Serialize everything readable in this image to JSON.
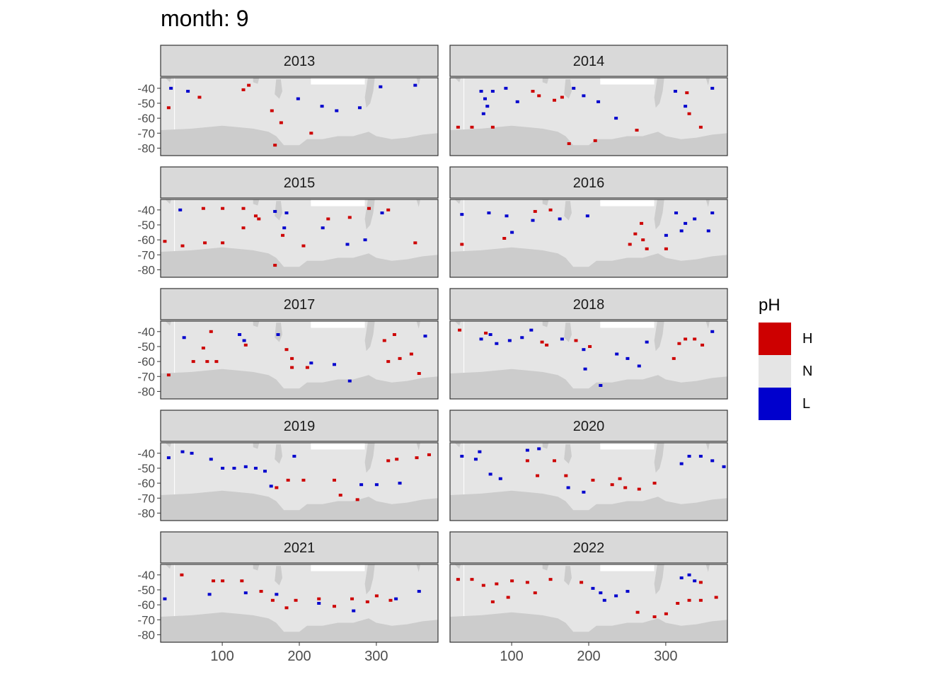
{
  "title": "month: 9",
  "legend": {
    "title": "pH",
    "items": [
      {
        "label": "H",
        "color": "#CD0000"
      },
      {
        "label": "N",
        "color": "#E5E5E5"
      },
      {
        "label": "L",
        "color": "#0000CD"
      }
    ]
  },
  "colors": {
    "land": "#CCCCCC",
    "ocean": "#E5E5E5",
    "strip": "#D9D9D9",
    "high": "#CD0000",
    "low": "#0000CD"
  },
  "chart_data": {
    "type": "heatmap",
    "title": "month: 9",
    "facet_variable": "year",
    "xlim": [
      20,
      380
    ],
    "ylim": [
      -85,
      -33
    ],
    "x_ticks": [
      100,
      200,
      300
    ],
    "y_ticks": [
      -40,
      -50,
      -60,
      -70,
      -80
    ],
    "legend_title": "pH",
    "legend_position": "right",
    "categories": [
      "H",
      "N",
      "L"
    ],
    "panels": [
      {
        "year": "2013",
        "high": [
          [
            134,
            -38
          ],
          [
            127,
            -41
          ],
          [
            164,
            -55
          ],
          [
            176,
            -63
          ],
          [
            215,
            -70
          ],
          [
            168,
            -78
          ],
          [
            70,
            -46
          ],
          [
            30,
            -53
          ]
        ],
        "low": [
          [
            33,
            -40
          ],
          [
            55,
            -42
          ],
          [
            229,
            -52
          ],
          [
            278,
            -53
          ],
          [
            305,
            -39
          ],
          [
            350,
            -38
          ],
          [
            198,
            -47
          ],
          [
            248,
            -55
          ]
        ]
      },
      {
        "year": "2014",
        "high": [
          [
            30,
            -66
          ],
          [
            48,
            -66
          ],
          [
            75,
            -66
          ],
          [
            127,
            -42
          ],
          [
            135,
            -45
          ],
          [
            155,
            -48
          ],
          [
            165,
            -46
          ],
          [
            174,
            -77
          ],
          [
            208,
            -75
          ],
          [
            262,
            -68
          ],
          [
            330,
            -57
          ],
          [
            345,
            -66
          ],
          [
            327,
            -43
          ]
        ],
        "low": [
          [
            60,
            -42
          ],
          [
            75,
            -42
          ],
          [
            92,
            -40
          ],
          [
            63,
            -57
          ],
          [
            68,
            -52
          ],
          [
            65,
            -47
          ],
          [
            107,
            -49
          ],
          [
            180,
            -40
          ],
          [
            193,
            -45
          ],
          [
            212,
            -49
          ],
          [
            235,
            -60
          ],
          [
            312,
            -42
          ],
          [
            325,
            -52
          ],
          [
            360,
            -40
          ]
        ]
      },
      {
        "year": "2015",
        "high": [
          [
            75,
            -39
          ],
          [
            100,
            -39
          ],
          [
            127,
            -39
          ],
          [
            143,
            -44
          ],
          [
            48,
            -64
          ],
          [
            77,
            -62
          ],
          [
            100,
            -62
          ],
          [
            127,
            -52
          ],
          [
            147,
            -46
          ],
          [
            178,
            -57
          ],
          [
            205,
            -64
          ],
          [
            237,
            -46
          ],
          [
            265,
            -45
          ],
          [
            290,
            -39
          ],
          [
            315,
            -40
          ],
          [
            350,
            -62
          ],
          [
            25,
            -61
          ],
          [
            168,
            -77
          ]
        ],
        "low": [
          [
            45,
            -40
          ],
          [
            168,
            -41
          ],
          [
            183,
            -42
          ],
          [
            180,
            -52
          ],
          [
            230,
            -52
          ],
          [
            262,
            -63
          ],
          [
            285,
            -60
          ],
          [
            307,
            -42
          ]
        ]
      },
      {
        "year": "2016",
        "high": [
          [
            268,
            -49
          ],
          [
            260,
            -56
          ],
          [
            253,
            -63
          ],
          [
            270,
            -60
          ],
          [
            150,
            -40
          ],
          [
            130,
            -41
          ],
          [
            35,
            -63
          ],
          [
            90,
            -59
          ],
          [
            275,
            -66
          ],
          [
            300,
            -66
          ]
        ],
        "low": [
          [
            35,
            -43
          ],
          [
            70,
            -42
          ],
          [
            93,
            -44
          ],
          [
            100,
            -55
          ],
          [
            127,
            -47
          ],
          [
            162,
            -46
          ],
          [
            198,
            -44
          ],
          [
            300,
            -57
          ],
          [
            313,
            -42
          ],
          [
            325,
            -49
          ],
          [
            337,
            -46
          ],
          [
            360,
            -42
          ],
          [
            320,
            -54
          ],
          [
            355,
            -54
          ]
        ]
      },
      {
        "year": "2017",
        "high": [
          [
            30,
            -69
          ],
          [
            62,
            -60
          ],
          [
            80,
            -60
          ],
          [
            92,
            -60
          ],
          [
            75,
            -51
          ],
          [
            130,
            -49
          ],
          [
            183,
            -52
          ],
          [
            190,
            -58
          ],
          [
            190,
            -64
          ],
          [
            210,
            -64
          ],
          [
            315,
            -60
          ],
          [
            330,
            -58
          ],
          [
            345,
            -55
          ],
          [
            310,
            -46
          ],
          [
            355,
            -68
          ],
          [
            323,
            -42
          ],
          [
            85,
            -40
          ]
        ],
        "low": [
          [
            50,
            -44
          ],
          [
            122,
            -42
          ],
          [
            128,
            -46
          ],
          [
            215,
            -61
          ],
          [
            245,
            -62
          ],
          [
            265,
            -73
          ],
          [
            363,
            -43
          ],
          [
            172,
            -42
          ]
        ]
      },
      {
        "year": "2018",
        "high": [
          [
            32,
            -39
          ],
          [
            66,
            -41
          ],
          [
            139,
            -47
          ],
          [
            145,
            -49
          ],
          [
            183,
            -46
          ],
          [
            201,
            -50
          ],
          [
            317,
            -48
          ],
          [
            325,
            -45
          ],
          [
            337,
            -45
          ],
          [
            310,
            -58
          ],
          [
            347,
            -49
          ]
        ],
        "low": [
          [
            60,
            -45
          ],
          [
            72,
            -42
          ],
          [
            80,
            -48
          ],
          [
            97,
            -46
          ],
          [
            125,
            -39
          ],
          [
            113,
            -44
          ],
          [
            165,
            -45
          ],
          [
            193,
            -52
          ],
          [
            236,
            -55
          ],
          [
            250,
            -58
          ],
          [
            265,
            -63
          ],
          [
            275,
            -47
          ],
          [
            360,
            -40
          ],
          [
            215,
            -76
          ],
          [
            195,
            -65
          ]
        ]
      },
      {
        "year": "2019",
        "high": [
          [
            185,
            -58
          ],
          [
            205,
            -58
          ],
          [
            245,
            -58
          ],
          [
            253,
            -68
          ],
          [
            275,
            -71
          ],
          [
            315,
            -45
          ],
          [
            326,
            -44
          ],
          [
            352,
            -43
          ],
          [
            368,
            -41
          ],
          [
            170,
            -63
          ]
        ],
        "low": [
          [
            30,
            -43
          ],
          [
            48,
            -39
          ],
          [
            60,
            -40
          ],
          [
            85,
            -44
          ],
          [
            100,
            -50
          ],
          [
            115,
            -50
          ],
          [
            130,
            -49
          ],
          [
            143,
            -50
          ],
          [
            155,
            -52
          ],
          [
            163,
            -62
          ],
          [
            193,
            -42
          ],
          [
            280,
            -61
          ],
          [
            300,
            -61
          ],
          [
            330,
            -60
          ]
        ]
      },
      {
        "year": "2020",
        "high": [
          [
            120,
            -45
          ],
          [
            133,
            -55
          ],
          [
            155,
            -45
          ],
          [
            170,
            -55
          ],
          [
            205,
            -58
          ],
          [
            230,
            -61
          ],
          [
            240,
            -57
          ],
          [
            247,
            -63
          ],
          [
            265,
            -64
          ],
          [
            285,
            -60
          ]
        ],
        "low": [
          [
            35,
            -42
          ],
          [
            53,
            -44
          ],
          [
            58,
            -39
          ],
          [
            72,
            -54
          ],
          [
            85,
            -57
          ],
          [
            120,
            -38
          ],
          [
            135,
            -37
          ],
          [
            173,
            -63
          ],
          [
            193,
            -66
          ],
          [
            320,
            -47
          ],
          [
            330,
            -42
          ],
          [
            345,
            -42
          ],
          [
            360,
            -45
          ],
          [
            375,
            -49
          ]
        ]
      },
      {
        "year": "2021",
        "high": [
          [
            47,
            -40
          ],
          [
            88,
            -44
          ],
          [
            100,
            -44
          ],
          [
            125,
            -44
          ],
          [
            150,
            -51
          ],
          [
            165,
            -57
          ],
          [
            183,
            -62
          ],
          [
            195,
            -57
          ],
          [
            225,
            -56
          ],
          [
            245,
            -61
          ],
          [
            268,
            -56
          ],
          [
            288,
            -58
          ],
          [
            300,
            -54
          ],
          [
            318,
            -57
          ]
        ],
        "low": [
          [
            25,
            -56
          ],
          [
            83,
            -53
          ],
          [
            130,
            -52
          ],
          [
            170,
            -53
          ],
          [
            225,
            -59
          ],
          [
            270,
            -64
          ],
          [
            355,
            -51
          ],
          [
            325,
            -56
          ]
        ]
      },
      {
        "year": "2022",
        "high": [
          [
            30,
            -43
          ],
          [
            48,
            -43
          ],
          [
            63,
            -47
          ],
          [
            80,
            -46
          ],
          [
            100,
            -44
          ],
          [
            120,
            -45
          ],
          [
            130,
            -52
          ],
          [
            75,
            -58
          ],
          [
            95,
            -55
          ],
          [
            150,
            -43
          ],
          [
            300,
            -66
          ],
          [
            285,
            -68
          ],
          [
            263,
            -65
          ],
          [
            315,
            -59
          ],
          [
            330,
            -57
          ],
          [
            345,
            -57
          ],
          [
            365,
            -55
          ],
          [
            345,
            -45
          ],
          [
            190,
            -45
          ]
        ],
        "low": [
          [
            205,
            -49
          ],
          [
            215,
            -52
          ],
          [
            220,
            -57
          ],
          [
            235,
            -54
          ],
          [
            250,
            -51
          ],
          [
            320,
            -42
          ],
          [
            330,
            -40
          ],
          [
            337,
            -44
          ]
        ]
      }
    ]
  }
}
